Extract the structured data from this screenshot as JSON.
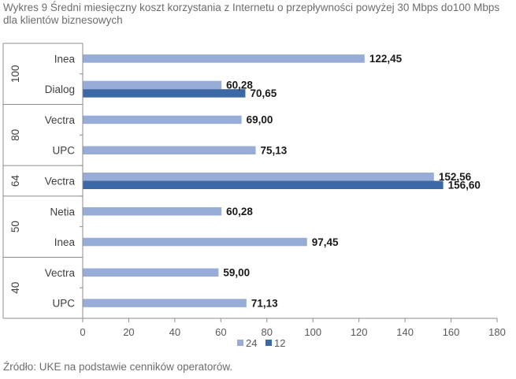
{
  "chart_data": {
    "type": "bar",
    "orientation": "horizontal",
    "title": "Wykres 9 Średni miesięczny koszt korzystania z Internetu o przepływności powyżej 30 Mbps do100 Mbps dla klientów biznesowych",
    "source": "Źródło: UKE na podstawie cenników operatorów.",
    "xlim": [
      0,
      180
    ],
    "xticks": [
      "0",
      "20",
      "40",
      "60",
      "80",
      "100",
      "120",
      "140",
      "160",
      "180"
    ],
    "legend_position": "bottom",
    "series": [
      {
        "name": "24",
        "color": "#98acd8"
      },
      {
        "name": "12",
        "color": "#3c68a6"
      }
    ],
    "groups": [
      {
        "label": "100",
        "rows": [
          {
            "category": "Inea",
            "values": [
              122.45,
              null
            ],
            "labels": [
              "122,45",
              null
            ]
          },
          {
            "category": "Dialog",
            "values": [
              60.28,
              70.65
            ],
            "labels": [
              "60,28",
              "70,65"
            ]
          }
        ]
      },
      {
        "label": "80",
        "rows": [
          {
            "category": "Vectra",
            "values": [
              69.0,
              null
            ],
            "labels": [
              "69,00",
              null
            ]
          },
          {
            "category": "UPC",
            "values": [
              75.13,
              null
            ],
            "labels": [
              "75,13",
              null
            ]
          }
        ]
      },
      {
        "label": "64",
        "rows": [
          {
            "category": "Vectra",
            "values": [
              152.56,
              156.6
            ],
            "labels": [
              "152,56",
              "156,60"
            ]
          }
        ]
      },
      {
        "label": "50",
        "rows": [
          {
            "category": "Netia",
            "values": [
              60.28,
              null
            ],
            "labels": [
              "60,28",
              null
            ]
          },
          {
            "category": "Inea",
            "values": [
              97.45,
              null
            ],
            "labels": [
              "97,45",
              null
            ]
          }
        ]
      },
      {
        "label": "40",
        "rows": [
          {
            "category": "Vectra",
            "values": [
              59.0,
              null
            ],
            "labels": [
              "59,00",
              null
            ]
          },
          {
            "category": "UPC",
            "values": [
              71.13,
              null
            ],
            "labels": [
              "71,13",
              null
            ]
          }
        ]
      }
    ]
  }
}
